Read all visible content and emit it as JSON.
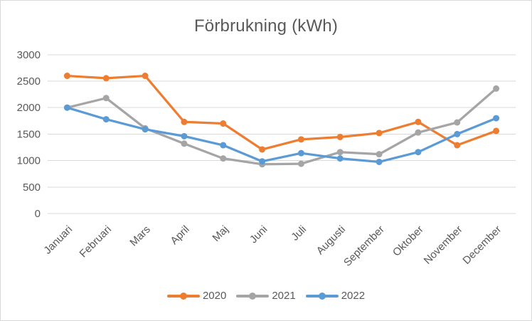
{
  "window": {
    "background": "#ffffff",
    "border_color": "#d9d9d9"
  },
  "chart_data": {
    "type": "line",
    "title": "Förbrukning (kWh)",
    "categories": [
      "Januari",
      "Februari",
      "Mars",
      "April",
      "Maj",
      "Juni",
      "Juli",
      "Augusti",
      "September",
      "Oktober",
      "November",
      "December"
    ],
    "series": [
      {
        "name": "2020",
        "color": "#ED7D31",
        "values": [
          2600,
          2555,
          2600,
          1730,
          1700,
          1210,
          1400,
          1445,
          1520,
          1730,
          1290,
          1560
        ]
      },
      {
        "name": "2021",
        "color": "#A5A5A5",
        "values": [
          2000,
          2180,
          1610,
          1320,
          1040,
          930,
          940,
          1160,
          1120,
          1530,
          1720,
          2360
        ]
      },
      {
        "name": "2022",
        "color": "#5B9BD5",
        "values": [
          2000,
          1780,
          1590,
          1460,
          1290,
          985,
          1140,
          1040,
          975,
          1160,
          1500,
          1800
        ]
      }
    ],
    "xlabel": "",
    "ylabel": "",
    "ylim": [
      0,
      3000
    ],
    "yticks": [
      0,
      500,
      1000,
      1500,
      2000,
      2500,
      3000
    ],
    "grid": "horizontal",
    "gridline_color": "#D9D9D9",
    "text_color": "#595959",
    "legend_position": "bottom",
    "marker": "circle",
    "line_width": 3.25,
    "marker_radius": 4.5
  }
}
